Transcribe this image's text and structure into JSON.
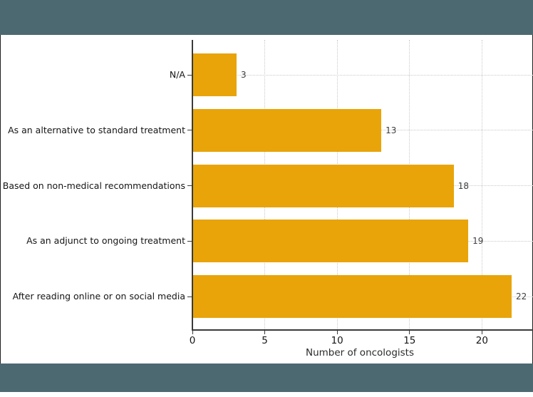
{
  "window": {
    "band_color": "#4C6972",
    "background": "#ffffff",
    "edge_border_color": "#1f1f1f"
  },
  "chart_data": {
    "type": "bar",
    "orientation": "horizontal",
    "title": "",
    "categories": [
      "N/A",
      "As an alternative to standard treatment",
      "Based on non-medical recommendations",
      "As an adjunct to ongoing treatment",
      "After reading online or on social media"
    ],
    "values": [
      3,
      13,
      18,
      19,
      22
    ],
    "value_labels": [
      "3",
      "13",
      "18",
      "19",
      "22"
    ],
    "xlabel": "Number of oncologists",
    "ylabel": "",
    "x_ticks": [
      0,
      5,
      10,
      15,
      20
    ],
    "xlim": [
      0,
      23.5
    ],
    "bar_color": "#E8A409",
    "grid": true,
    "grid_style": "dotted",
    "grid_color": "#c9c9c9",
    "axis_color": "#3a3a3a",
    "legend": "none"
  }
}
